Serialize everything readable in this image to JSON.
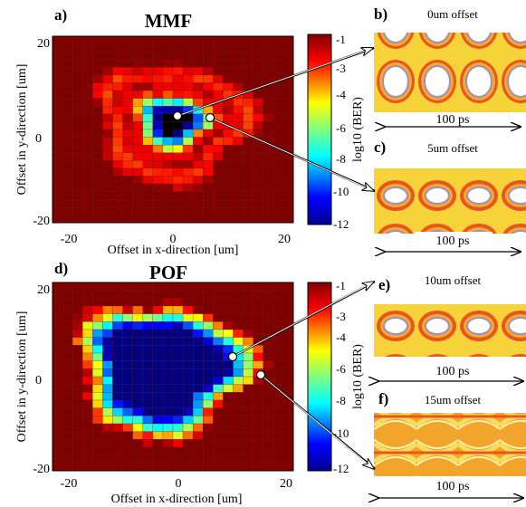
{
  "figure": {
    "top": {
      "letter": "a)",
      "title": "MMF",
      "xlabel": "Offset in x-direction [um]",
      "ylabel": "Offset in y-direction [um]",
      "xticks": [
        "-20",
        "0",
        "20"
      ],
      "yticks": [
        "20",
        "0",
        "-20"
      ],
      "colorbar": {
        "label": "log10 (BER)",
        "ticks": [
          "-1",
          "-3",
          "-4",
          "-6",
          "-8",
          "-10",
          "-12"
        ]
      }
    },
    "bottom": {
      "letter": "d)",
      "title": "POF",
      "xlabel": "Offset in x-direction [um]",
      "ylabel": "Offset in y-direction [um]",
      "xticks": [
        "-20",
        "0",
        "20"
      ],
      "yticks": [
        "20",
        "0",
        "-20"
      ],
      "colorbar": {
        "label": "log10 (BER)",
        "ticks": [
          "-1",
          "-3",
          "-4",
          "-6",
          "-8",
          "-10",
          "-12"
        ]
      }
    },
    "eyes": [
      {
        "letter": "b)",
        "label": "0um offset",
        "span": "100 ps"
      },
      {
        "letter": "c)",
        "label": "5um offset",
        "span": "100 ps"
      },
      {
        "letter": "e)",
        "label": "10um offset",
        "span": "100 ps"
      },
      {
        "letter": "f)",
        "label": "15um offset",
        "span": "100 ps"
      }
    ]
  },
  "chart_data": [
    {
      "type": "heatmap",
      "title": "MMF",
      "xlabel": "Offset in x-direction [um]",
      "ylabel": "Offset in y-direction [um]",
      "xlim": [
        -24,
        24
      ],
      "ylim": [
        -24,
        24
      ],
      "value_label": "log10 (BER)",
      "value_range": [
        -12,
        -1
      ],
      "colormap": "jet",
      "pattern": "ring",
      "center": [
        0,
        2
      ],
      "center_value": -12,
      "ring_radius": 13,
      "ring_value": -3.2,
      "edge_value": -1,
      "markers": [
        {
          "x": 0,
          "y": 2,
          "to": "b)"
        },
        {
          "x": 5,
          "y": 2,
          "to": "c)"
        }
      ]
    },
    {
      "type": "heatmap",
      "title": "POF",
      "xlabel": "Offset in x-direction [um]",
      "ylabel": "Offset in y-direction [um]",
      "xlim": [
        -24,
        24
      ],
      "ylim": [
        -24,
        24
      ],
      "value_label": "log10 (BER)",
      "value_range": [
        -12,
        -1
      ],
      "colormap": "jet",
      "pattern": "plateau",
      "center": [
        -2,
        2
      ],
      "center_value": -12,
      "plateau_radius": 11,
      "edge_value": -1,
      "markers": [
        {
          "x": 10,
          "y": 3,
          "to": "e)"
        },
        {
          "x": 15,
          "y": -1,
          "to": "f)"
        }
      ]
    }
  ]
}
